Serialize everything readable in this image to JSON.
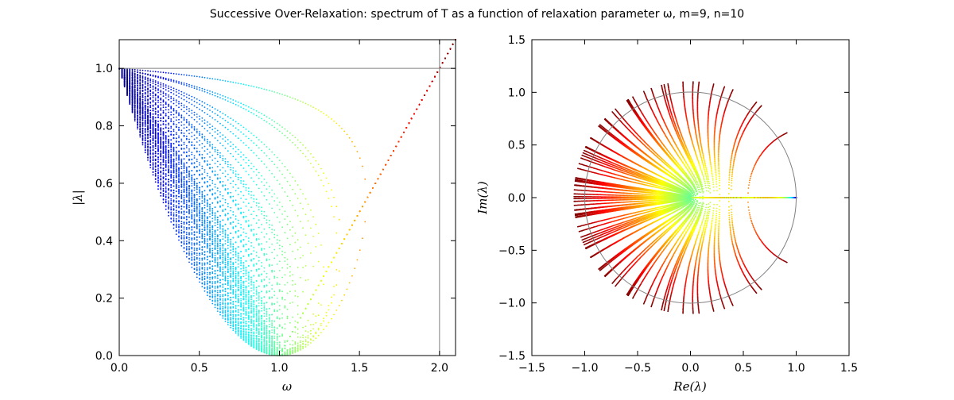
{
  "figure_title": "Successive Over-Relaxation: spectrum of T as a function of relaxation parameter ω, m=9, n=10",
  "chart_data": [
    {
      "type": "scatter",
      "xlabel": "ω",
      "ylabel": "|λ|",
      "xlim": [
        0.0,
        2.1
      ],
      "ylim": [
        0.0,
        1.1
      ],
      "xticks": [
        "0.0",
        "0.5",
        "1.0",
        "1.5",
        "2.0"
      ],
      "yticks": [
        "0.0",
        "0.2",
        "0.4",
        "0.6",
        "0.8",
        "1.0"
      ],
      "reference_lines": [
        {
          "axis": "y",
          "value": 1.0
        },
        {
          "axis": "x",
          "value": 2.0
        }
      ],
      "grid": false,
      "colormap": "jet",
      "description_free": true
    },
    {
      "type": "scatter",
      "xlabel": "Re(λ)",
      "ylabel": "Im(λ)",
      "xlim": [
        -1.5,
        1.5
      ],
      "ylim": [
        -1.5,
        1.5
      ],
      "xticks": [
        "−1.5",
        "−1.0",
        "−0.5",
        "0.0",
        "0.5",
        "1.0",
        "1.5"
      ],
      "yticks": [
        "−1.5",
        "−1.0",
        "−0.5",
        "0.0",
        "0.5",
        "1.0",
        "1.5"
      ],
      "reference_circle_radius": 1.0,
      "grid": false,
      "colormap": "jet"
    }
  ],
  "model": {
    "m": 9,
    "n": 10
  }
}
